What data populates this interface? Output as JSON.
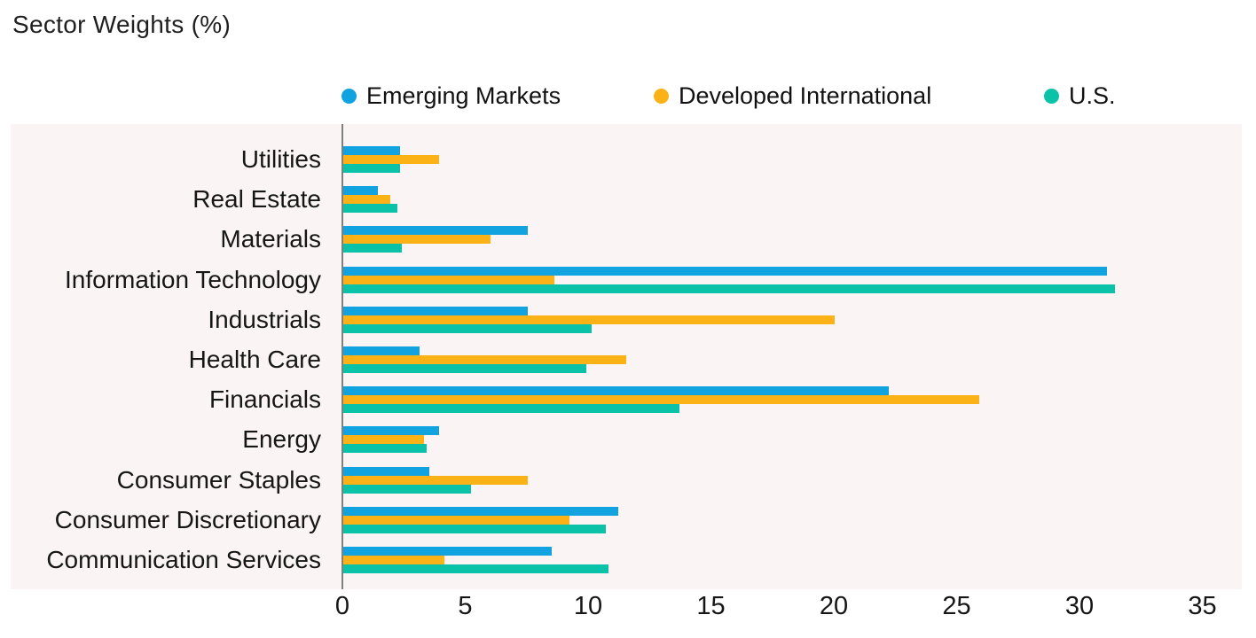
{
  "header": {
    "title": "Sector Weights (%)"
  },
  "chart_data": {
    "type": "bar",
    "orientation": "horizontal",
    "title": "Sector Weights (%)",
    "categories": [
      "Utilities",
      "Real Estate",
      "Materials",
      "Information Technology",
      "Industrials",
      "Health Care",
      "Financials",
      "Energy",
      "Consumer Staples",
      "Consumer Discretionary",
      "Communication Services"
    ],
    "series": [
      {
        "name": "Emerging Markets",
        "color": "#10A3E0",
        "values": [
          2.3,
          1.4,
          7.5,
          31.1,
          7.5,
          3.1,
          22.2,
          3.9,
          3.5,
          11.2,
          8.5
        ]
      },
      {
        "name": "Developed International",
        "color": "#FBB216",
        "values": [
          3.9,
          1.9,
          6.0,
          8.6,
          20.0,
          11.5,
          25.9,
          3.3,
          7.5,
          9.2,
          4.1
        ]
      },
      {
        "name": "U.S.",
        "color": "#0AC2A8",
        "values": [
          2.3,
          2.2,
          2.4,
          31.4,
          10.1,
          9.9,
          13.7,
          3.4,
          5.2,
          10.7,
          10.8
        ]
      }
    ],
    "x_ticks": [
      0,
      5,
      10,
      15,
      20,
      25,
      30,
      35
    ],
    "xlim": [
      0,
      35
    ],
    "xlabel": "",
    "ylabel": "",
    "grid": false,
    "legend_position": "top",
    "colors": {
      "plot_background": "#FBF4F5",
      "axis_line": "#7F7F7F",
      "text": "#1c1c1c"
    }
  }
}
